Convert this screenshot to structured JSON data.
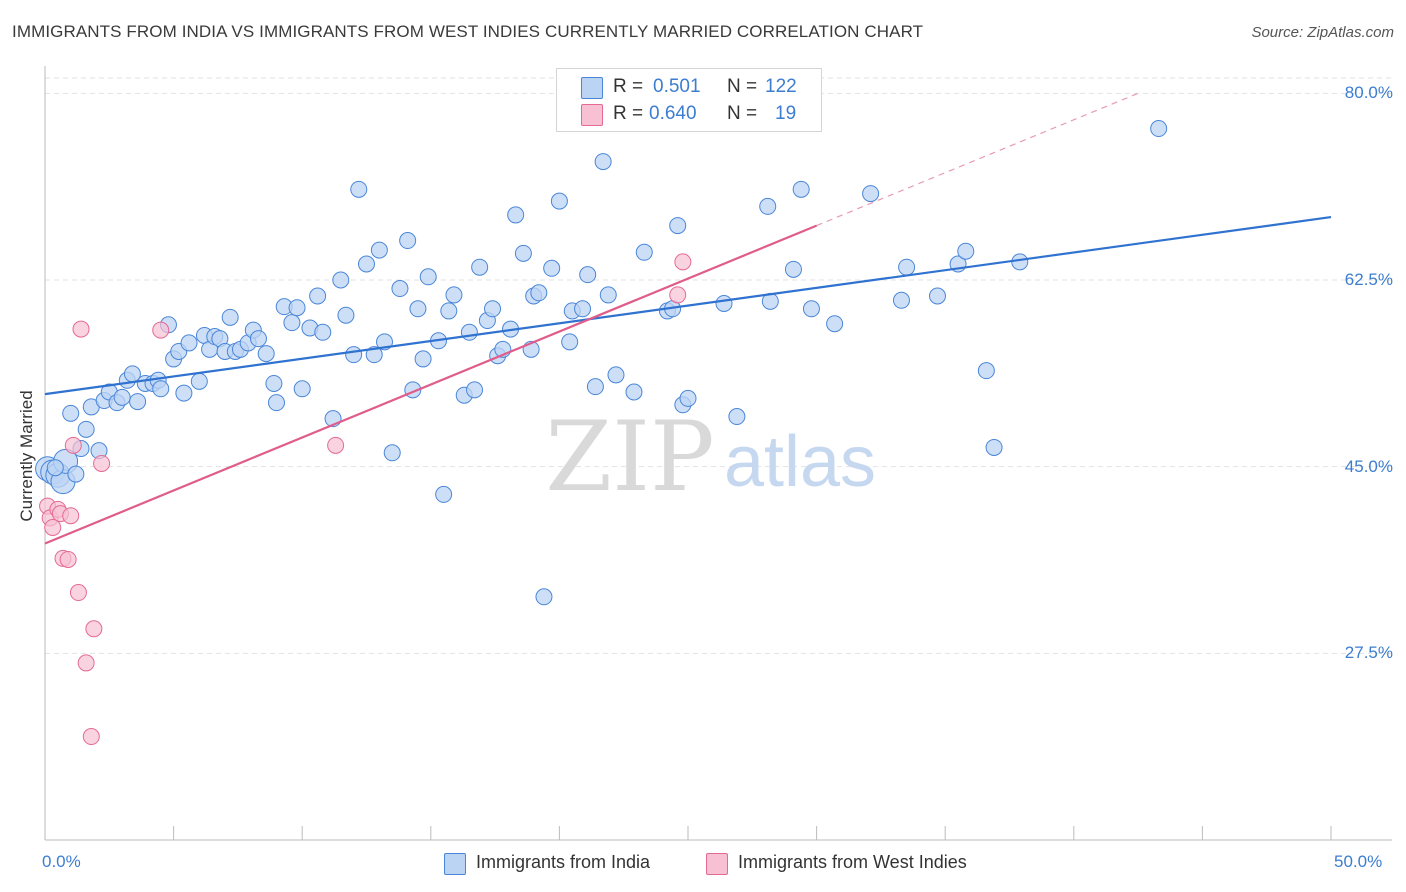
{
  "title": "IMMIGRANTS FROM INDIA VS IMMIGRANTS FROM WEST INDIES CURRENTLY MARRIED CORRELATION CHART",
  "source": "Source: ZipAtlas.com",
  "watermark": {
    "zip": "ZIP",
    "atlas": "atlas"
  },
  "colors": {
    "india": "#4a86d8",
    "india_fill": "#bcd4f4",
    "westindies": "#e46a95",
    "westindies_fill": "#f7c0d3",
    "tick": "#3c7dd0"
  },
  "legend": {
    "rows": [
      {
        "r_label": "R =",
        "r_value": "0.501",
        "n_label": "N =",
        "n_value": "122"
      },
      {
        "r_label": "R =",
        "r_value": "0.640",
        "n_label": "N =",
        "n_value": "19"
      }
    ]
  },
  "bottom_legend": [
    "Immigrants from India",
    "Immigrants from West Indies"
  ],
  "chart_data": {
    "type": "scatter",
    "title": "IMMIGRANTS FROM INDIA VS IMMIGRANTS FROM WEST INDIES CURRENTLY MARRIED CORRELATION CHART",
    "xlabel": "",
    "ylabel": "Currently Married",
    "xlim": [
      0,
      50
    ],
    "ylim": [
      10,
      82
    ],
    "x_tick_labels": [
      "0.0%",
      "50.0%"
    ],
    "y_ticks": [
      27.5,
      45.0,
      62.5,
      80.0
    ],
    "y_tick_labels": [
      "27.5%",
      "45.0%",
      "62.5%",
      "80.0%"
    ],
    "grid": true,
    "legend_position": "top-center",
    "series": [
      {
        "name": "Immigrants from India",
        "r": 0.501,
        "n": 122,
        "trend": [
          [
            0,
            51.8
          ],
          [
            50,
            68.4
          ]
        ],
        "points": [
          [
            0.1,
            44.8
          ],
          [
            0.3,
            44.5
          ],
          [
            0.5,
            44.2
          ],
          [
            0.7,
            43.6
          ],
          [
            0.8,
            45.5
          ],
          [
            1.0,
            50.0
          ],
          [
            1.4,
            46.7
          ],
          [
            1.6,
            48.5
          ],
          [
            1.8,
            50.6
          ],
          [
            2.1,
            46.5
          ],
          [
            2.3,
            51.2
          ],
          [
            2.5,
            52.0
          ],
          [
            2.8,
            51.0
          ],
          [
            3.0,
            51.5
          ],
          [
            3.2,
            53.1
          ],
          [
            3.4,
            53.7
          ],
          [
            3.6,
            51.1
          ],
          [
            3.9,
            52.8
          ],
          [
            4.2,
            52.8
          ],
          [
            4.4,
            53.1
          ],
          [
            4.5,
            52.3
          ],
          [
            4.8,
            58.3
          ],
          [
            5.0,
            55.1
          ],
          [
            5.2,
            55.8
          ],
          [
            5.4,
            51.9
          ],
          [
            5.6,
            56.6
          ],
          [
            6.0,
            53.0
          ],
          [
            6.2,
            57.3
          ],
          [
            6.4,
            56.0
          ],
          [
            6.6,
            57.2
          ],
          [
            6.8,
            57.0
          ],
          [
            7.0,
            55.8
          ],
          [
            7.2,
            59.0
          ],
          [
            7.4,
            55.8
          ],
          [
            7.6,
            56.0
          ],
          [
            7.9,
            56.6
          ],
          [
            8.1,
            57.8
          ],
          [
            8.3,
            57.0
          ],
          [
            8.6,
            55.6
          ],
          [
            8.9,
            52.8
          ],
          [
            9.0,
            51.0
          ],
          [
            9.3,
            60.0
          ],
          [
            9.6,
            58.5
          ],
          [
            9.8,
            59.9
          ],
          [
            10.0,
            52.3
          ],
          [
            10.3,
            58.0
          ],
          [
            10.6,
            61.0
          ],
          [
            10.8,
            57.6
          ],
          [
            11.2,
            49.5
          ],
          [
            11.5,
            62.5
          ],
          [
            11.7,
            59.2
          ],
          [
            12.0,
            55.5
          ],
          [
            12.2,
            71.0
          ],
          [
            12.5,
            64.0
          ],
          [
            12.8,
            55.5
          ],
          [
            13.0,
            65.3
          ],
          [
            13.2,
            56.7
          ],
          [
            13.5,
            46.3
          ],
          [
            13.8,
            61.7
          ],
          [
            14.1,
            66.2
          ],
          [
            14.3,
            52.2
          ],
          [
            14.5,
            59.8
          ],
          [
            14.7,
            55.1
          ],
          [
            14.9,
            62.8
          ],
          [
            15.3,
            56.8
          ],
          [
            15.5,
            42.4
          ],
          [
            15.7,
            59.6
          ],
          [
            15.9,
            61.1
          ],
          [
            16.3,
            51.7
          ],
          [
            16.5,
            57.6
          ],
          [
            16.7,
            52.2
          ],
          [
            16.9,
            63.7
          ],
          [
            17.2,
            58.7
          ],
          [
            17.4,
            59.8
          ],
          [
            17.6,
            55.4
          ],
          [
            17.8,
            56.0
          ],
          [
            18.1,
            57.9
          ],
          [
            18.3,
            68.6
          ],
          [
            18.6,
            65.0
          ],
          [
            18.9,
            56.0
          ],
          [
            19.0,
            61.0
          ],
          [
            19.2,
            61.3
          ],
          [
            19.4,
            32.8
          ],
          [
            19.7,
            63.6
          ],
          [
            20.0,
            69.9
          ],
          [
            20.4,
            56.7
          ],
          [
            20.5,
            59.6
          ],
          [
            20.9,
            59.8
          ],
          [
            21.1,
            63.0
          ],
          [
            21.4,
            52.5
          ],
          [
            21.7,
            73.6
          ],
          [
            21.9,
            61.1
          ],
          [
            22.2,
            53.6
          ],
          [
            22.9,
            52.0
          ],
          [
            23.3,
            65.1
          ],
          [
            24.2,
            59.6
          ],
          [
            24.4,
            59.8
          ],
          [
            24.6,
            67.6
          ],
          [
            24.8,
            50.8
          ],
          [
            25.0,
            51.4
          ],
          [
            26.4,
            60.3
          ],
          [
            26.9,
            49.7
          ],
          [
            28.1,
            69.4
          ],
          [
            28.2,
            60.5
          ],
          [
            29.1,
            63.5
          ],
          [
            29.4,
            71.0
          ],
          [
            29.8,
            59.8
          ],
          [
            30.7,
            58.4
          ],
          [
            32.1,
            70.6
          ],
          [
            33.3,
            60.6
          ],
          [
            33.5,
            63.7
          ],
          [
            34.7,
            61.0
          ],
          [
            35.5,
            64.0
          ],
          [
            35.8,
            65.2
          ],
          [
            36.6,
            54.0
          ],
          [
            36.9,
            46.8
          ],
          [
            37.9,
            64.2
          ],
          [
            43.3,
            76.7
          ],
          [
            0.4,
            44.9
          ],
          [
            1.2,
            44.3
          ]
        ]
      },
      {
        "name": "Immigrants from West Indies",
        "r": 0.64,
        "n": 19,
        "trend": [
          [
            0,
            37.8
          ],
          [
            30,
            67.6
          ]
        ],
        "trend_extension": [
          [
            30,
            67.6
          ],
          [
            42.5,
            80.0
          ]
        ],
        "points": [
          [
            0.1,
            41.3
          ],
          [
            0.2,
            40.2
          ],
          [
            0.3,
            39.3
          ],
          [
            0.5,
            41.0
          ],
          [
            0.6,
            40.6
          ],
          [
            0.7,
            36.4
          ],
          [
            0.9,
            36.3
          ],
          [
            1.0,
            40.4
          ],
          [
            1.1,
            47.0
          ],
          [
            1.3,
            33.2
          ],
          [
            1.4,
            57.9
          ],
          [
            1.6,
            26.6
          ],
          [
            1.8,
            19.7
          ],
          [
            1.9,
            29.8
          ],
          [
            2.2,
            45.3
          ],
          [
            4.5,
            57.8
          ],
          [
            11.3,
            47.0
          ],
          [
            24.6,
            61.1
          ],
          [
            24.8,
            64.2
          ]
        ]
      }
    ]
  }
}
